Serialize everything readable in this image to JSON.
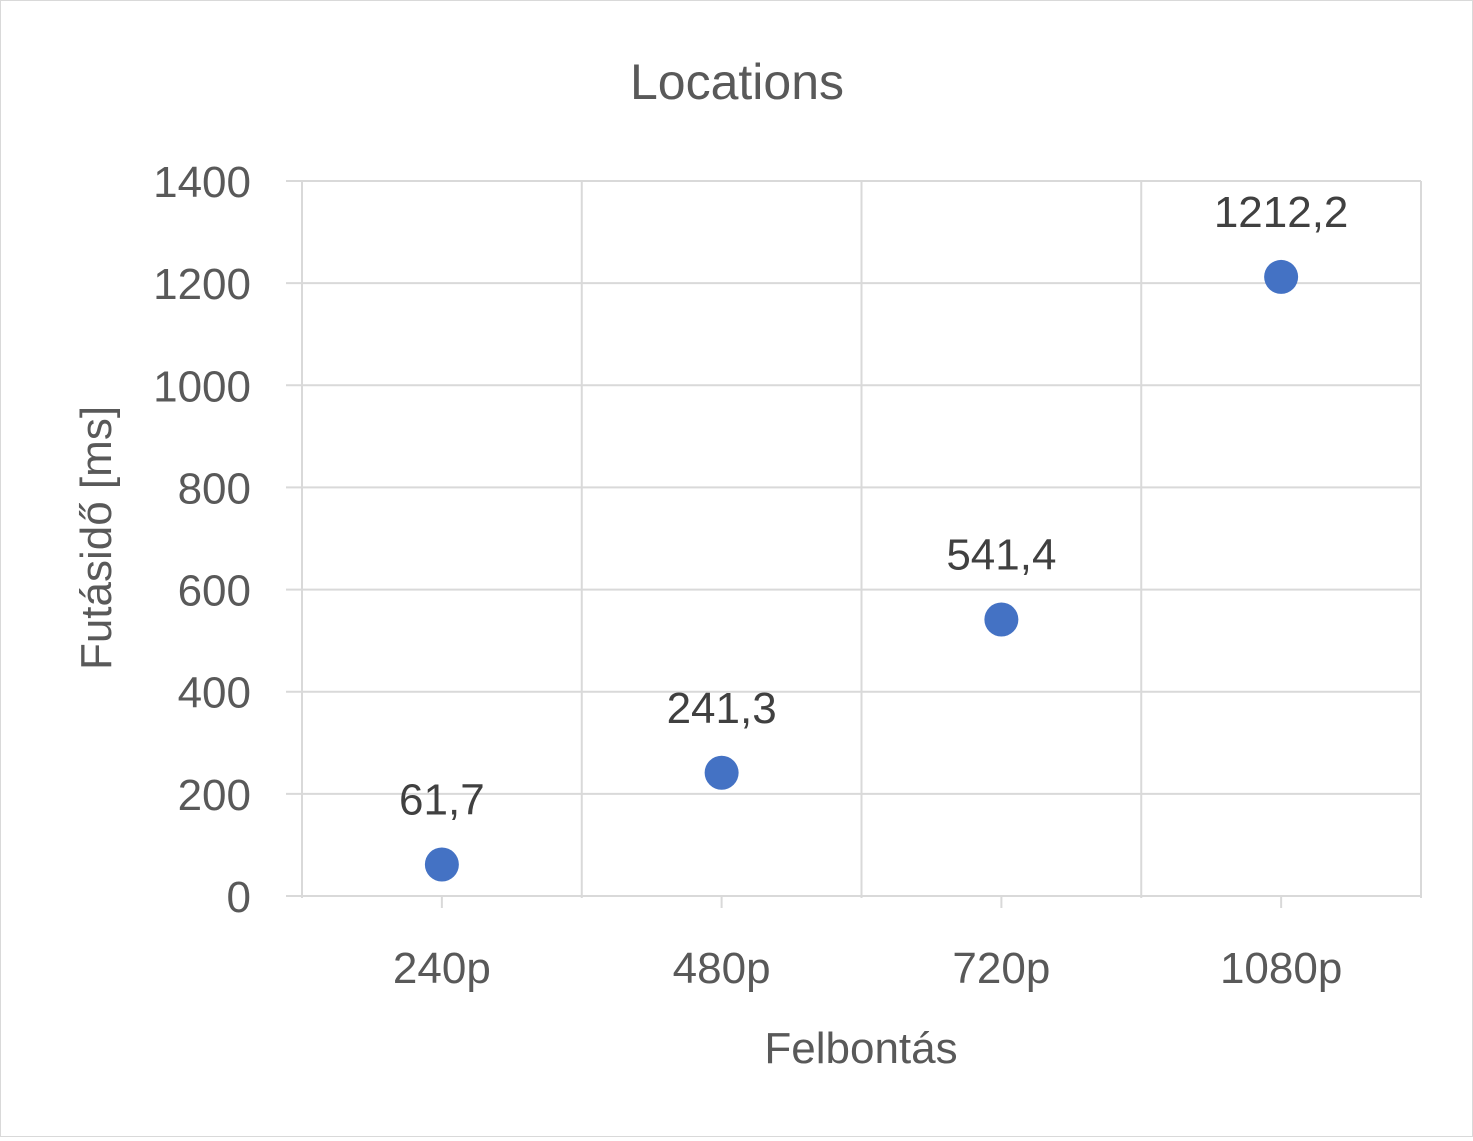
{
  "chart_data": {
    "type": "scatter",
    "title": "Locations",
    "xlabel": "Felbontás",
    "ylabel": "Futásidő [ms]",
    "categories": [
      "240p",
      "480p",
      "720p",
      "1080p"
    ],
    "values": [
      61.7,
      241.3,
      541.4,
      1212.2
    ],
    "data_labels": [
      "61,7",
      "241,3",
      "541,4",
      "1212,2"
    ],
    "y_ticks": [
      "0",
      "200",
      "400",
      "600",
      "800",
      "1000",
      "1200",
      "1400"
    ],
    "ylim": [
      0,
      1400
    ],
    "grid": true,
    "legend": "none",
    "colors": {
      "marker": "#4472C4",
      "grid": "#d9d9d9",
      "axis_text": "#595959",
      "label_text": "#404040"
    }
  }
}
